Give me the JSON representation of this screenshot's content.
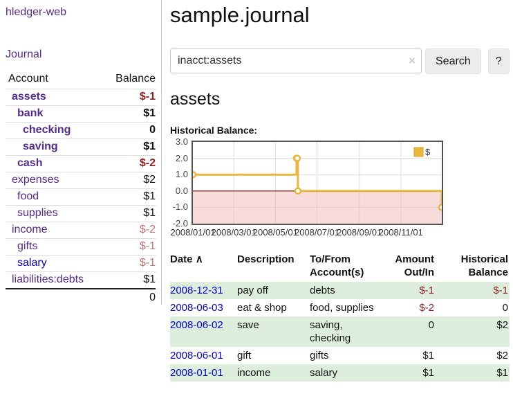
{
  "app": {
    "title": "hledger-web"
  },
  "colors": {
    "account_link": "#542b8e",
    "unvisited_link": "#0202cf",
    "negative_strong": "#8e1d1d",
    "negative_soft": "#bd7470",
    "row_stripe_green": "#ddeedd",
    "chart_line_gold": "#e7b73e"
  },
  "sidebar": {
    "journal_label": "Journal",
    "accounts_table": {
      "headers": {
        "account": "Account",
        "balance": "Balance"
      },
      "rows": [
        {
          "name": "assets",
          "balance": "$-1"
        },
        {
          "name": "bank",
          "balance": "$1"
        },
        {
          "name": "checking",
          "balance": "0"
        },
        {
          "name": "saving",
          "balance": "$1"
        },
        {
          "name": "cash",
          "balance": "$-2"
        },
        {
          "name": "expenses",
          "balance": "$2"
        },
        {
          "name": "food",
          "balance": "$1"
        },
        {
          "name": "supplies",
          "balance": "$1"
        },
        {
          "name": "income",
          "balance": "$-2"
        },
        {
          "name": "gifts",
          "balance": "$-1"
        },
        {
          "name": "salary",
          "balance": "$-1"
        },
        {
          "name": "liabilities:debts",
          "balance": "$1"
        }
      ],
      "total": "0"
    }
  },
  "main": {
    "title": "sample.journal",
    "search": {
      "value": "inacct:assets",
      "clear_icon": "×",
      "button_label": "Search",
      "help_label": "?"
    },
    "account_heading": "assets",
    "chart_label": "Historical Balance:"
  },
  "chart_data": {
    "type": "line",
    "title": "Historical Balance",
    "series": [
      {
        "name": "$",
        "color": "#e7b73e",
        "step": true,
        "points": [
          [
            "2008-01-01",
            1
          ],
          [
            "2008-06-01",
            2
          ],
          [
            "2008-06-02",
            2
          ],
          [
            "2008-06-03",
            0
          ],
          [
            "2008-12-31",
            -1
          ]
        ]
      }
    ],
    "x_ticks": [
      "2008/01/01",
      "2008/03/01",
      "2008/05/01",
      "2008/07/01",
      "2008/09/01",
      "2008/11/01"
    ],
    "y_ticks": [
      3.0,
      2.0,
      1.0,
      0.0,
      -1.0,
      -2.0
    ],
    "xlim": [
      "2008-01-01",
      "2008-12-31"
    ],
    "ylim": [
      -2,
      3
    ],
    "grid": true,
    "legend_position": "top-right",
    "negative_region_color": "#f2b8b8",
    "zero_line_color": "#8b0000"
  },
  "register": {
    "headers": {
      "date": "Date",
      "sort_icon": "∧",
      "description": "Description",
      "accounts": "To/From Account(s)",
      "amount": "Amount Out/In",
      "balance": "Historical Balance"
    },
    "rows": [
      {
        "date": "2008-12-31",
        "description": "pay off",
        "accounts": "debts",
        "amount": "$-1",
        "balance": "$-1"
      },
      {
        "date": "2008-06-03",
        "description": "eat & shop",
        "accounts": "food, supplies",
        "amount": "$-2",
        "balance": "0"
      },
      {
        "date": "2008-06-02",
        "description": "save",
        "accounts": "saving, checking",
        "amount": "0",
        "balance": "$2"
      },
      {
        "date": "2008-06-01",
        "description": "gift",
        "accounts": "gifts",
        "amount": "$1",
        "balance": "$2"
      },
      {
        "date": "2008-01-01",
        "description": "income",
        "accounts": "salary",
        "amount": "$1",
        "balance": "$1"
      }
    ]
  }
}
